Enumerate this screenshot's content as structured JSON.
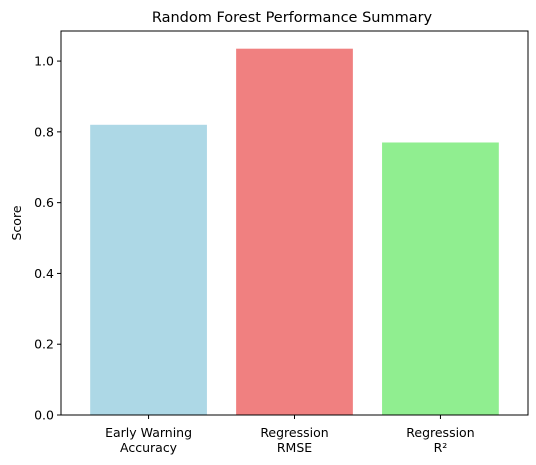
{
  "chart_data": {
    "type": "bar",
    "title": "Random Forest Performance Summary",
    "xlabel": "",
    "ylabel": "Score",
    "categories": [
      [
        "Early Warning",
        "Accuracy"
      ],
      [
        "Regression",
        "RMSE"
      ],
      [
        "Regression",
        "R²"
      ]
    ],
    "values": [
      0.82,
      1.035,
      0.77
    ],
    "colors": [
      "#add8e6",
      "#f08080",
      "#90ee90"
    ],
    "ylim": [
      0,
      1.085
    ],
    "yticks": [
      0.0,
      0.2,
      0.4,
      0.6,
      0.8,
      1.0
    ],
    "ytick_labels": [
      "0.0",
      "0.2",
      "0.4",
      "0.6",
      "0.8",
      "1.0"
    ],
    "grid": false,
    "legend": "none"
  }
}
